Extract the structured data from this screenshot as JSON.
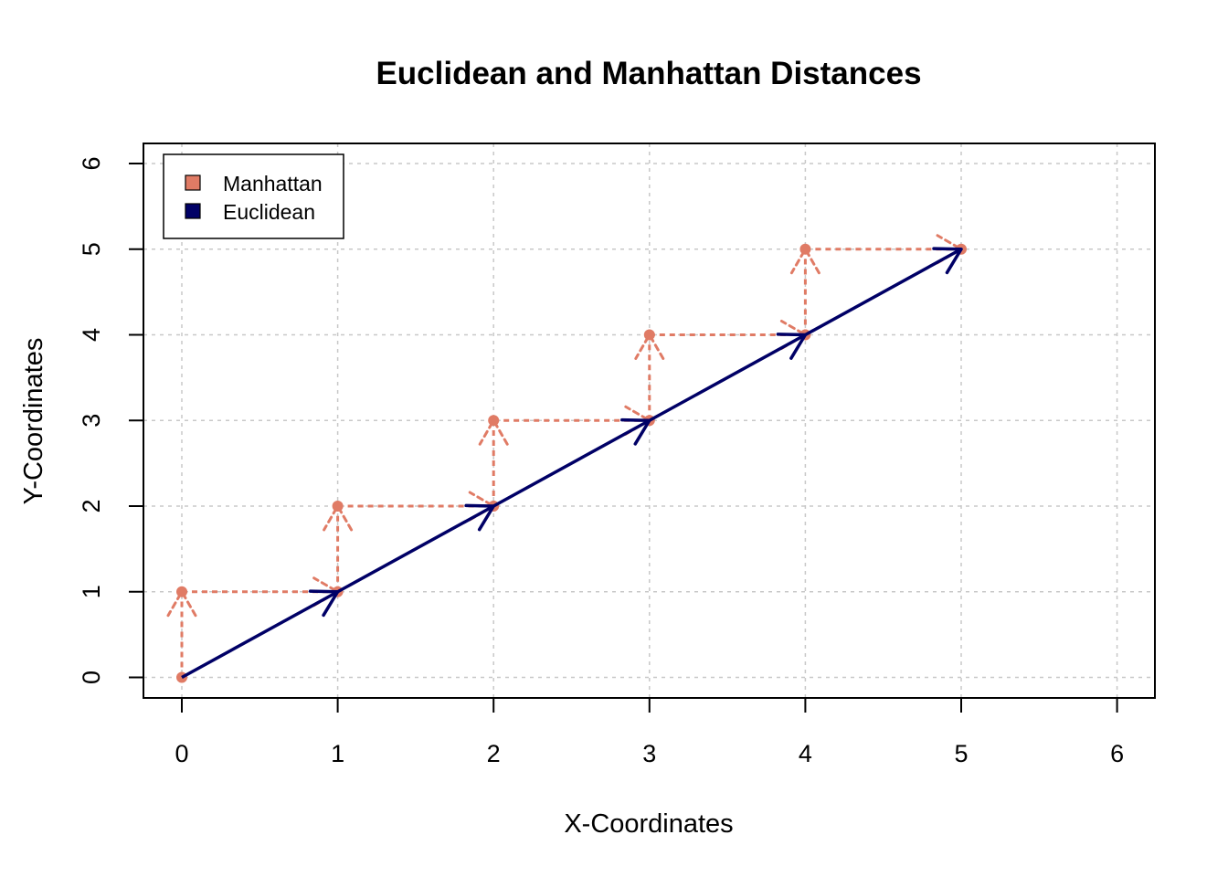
{
  "chart_data": {
    "type": "line",
    "title": "Euclidean and Manhattan Distances",
    "xlabel": "X-Coordinates",
    "ylabel": "Y-Coordinates",
    "xlim": [
      0,
      6
    ],
    "ylim": [
      0,
      6
    ],
    "x_ticks": [
      0,
      1,
      2,
      3,
      4,
      5,
      6
    ],
    "y_ticks": [
      0,
      1,
      2,
      3,
      4,
      5,
      6
    ],
    "grid": true,
    "legend_position": "top-left",
    "series": [
      {
        "name": "Manhattan",
        "color": "#E07B65",
        "style": "dashed-arrows",
        "points": [
          [
            0,
            0
          ],
          [
            0,
            1
          ],
          [
            1,
            1
          ],
          [
            1,
            2
          ],
          [
            2,
            2
          ],
          [
            2,
            3
          ],
          [
            3,
            3
          ],
          [
            3,
            4
          ],
          [
            4,
            4
          ],
          [
            4,
            5
          ],
          [
            5,
            5
          ]
        ]
      },
      {
        "name": "Euclidean",
        "color": "#000066",
        "style": "solid-arrows",
        "points": [
          [
            0,
            0
          ],
          [
            1,
            1
          ],
          [
            2,
            2
          ],
          [
            3,
            3
          ],
          [
            4,
            4
          ],
          [
            5,
            5
          ]
        ]
      }
    ]
  }
}
